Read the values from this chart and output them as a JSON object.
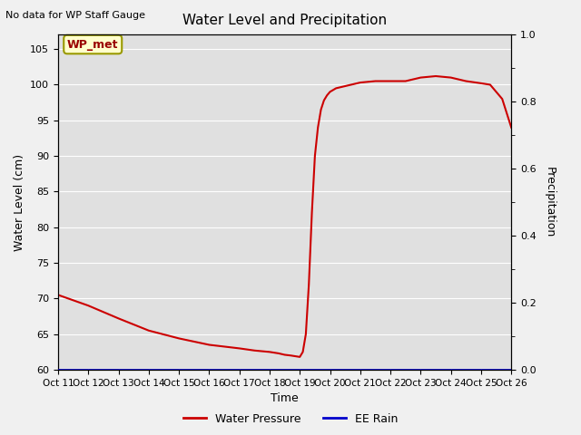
{
  "title": "Water Level and Precipitation",
  "top_left_text": "No data for WP Staff Gauge",
  "ylabel_left": "Water Level (cm)",
  "ylabel_right": "Precipitation",
  "xlabel": "Time",
  "ylim_left": [
    60,
    107
  ],
  "ylim_right": [
    0.0,
    1.0
  ],
  "yticks_left": [
    60,
    65,
    70,
    75,
    80,
    85,
    90,
    95,
    100,
    105
  ],
  "yticks_right": [
    0.0,
    0.2,
    0.4,
    0.6,
    0.8,
    1.0
  ],
  "xtick_labels": [
    "Oct 11",
    "Oct 12",
    "Oct 13",
    "Oct 14",
    "Oct 15",
    "Oct 16",
    "Oct 17",
    "Oct 18",
    "Oct 19",
    "Oct 20",
    "Oct 21",
    "Oct 22",
    "Oct 23",
    "Oct 24",
    "Oct 25",
    "Oct 26"
  ],
  "figure_bg_color": "#f0f0f0",
  "plot_bg_color": "#e0e0e0",
  "line_color_wp": "#cc0000",
  "line_color_rain": "#0000cc",
  "legend_wp": "Water Pressure",
  "legend_rain": "EE Rain",
  "annotation_box": "WP_met",
  "annotation_box_bg": "#ffffcc",
  "annotation_box_border": "#999900",
  "annotation_text_color": "#990000",
  "wp_x": [
    11,
    12,
    13,
    14,
    15,
    16,
    17,
    17.5,
    18.0,
    18.3,
    18.5,
    18.7,
    18.85,
    19.0,
    19.1,
    19.2,
    19.3,
    19.4,
    19.5,
    19.6,
    19.7,
    19.8,
    19.9,
    20.0,
    20.2,
    20.5,
    21.0,
    21.5,
    22.0,
    22.5,
    23.0,
    23.5,
    24.0,
    24.5,
    25.0,
    25.3,
    25.7,
    26.0
  ],
  "wp_y": [
    70.5,
    69.0,
    67.2,
    65.5,
    64.4,
    63.5,
    63.0,
    62.7,
    62.5,
    62.3,
    62.1,
    62.0,
    61.9,
    61.8,
    62.5,
    65.0,
    72.0,
    82.0,
    90.0,
    94.0,
    96.5,
    97.8,
    98.5,
    99.0,
    99.5,
    99.8,
    100.3,
    100.5,
    100.5,
    100.5,
    101.0,
    101.2,
    101.0,
    100.5,
    100.2,
    100.0,
    98.0,
    94.0
  ]
}
